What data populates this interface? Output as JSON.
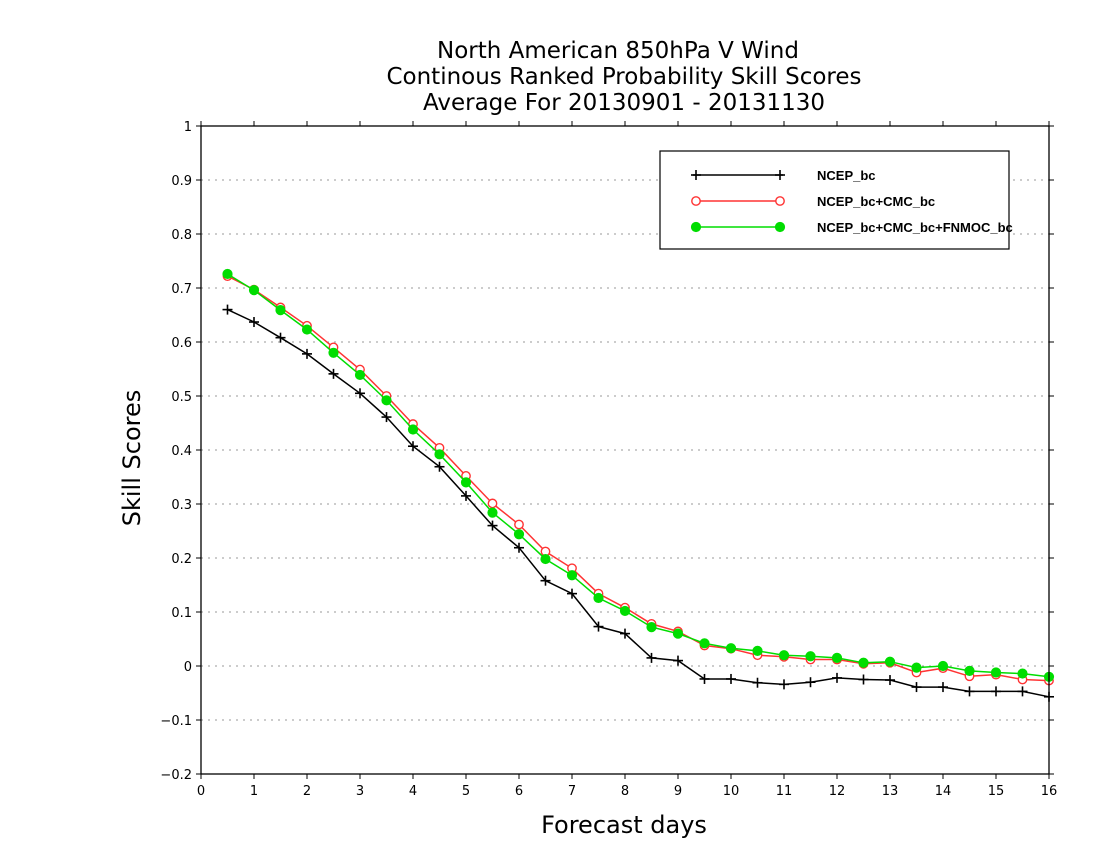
{
  "chart_data": {
    "type": "line",
    "title": [
      "North American 850hPa V Wind",
      "Continous Ranked Probability Skill Scores",
      "Average For 20130901 - 20131130"
    ],
    "xlabel": "Forecast days",
    "ylabel": "Skill Scores",
    "xlim": [
      0,
      16
    ],
    "ylim": [
      -0.2,
      1
    ],
    "xticks": [
      "0",
      "1",
      "2",
      "3",
      "4",
      "5",
      "6",
      "7",
      "8",
      "9",
      "10",
      "11",
      "12",
      "13",
      "14",
      "15",
      "16"
    ],
    "yticks": [
      "−0.2",
      "−0.1",
      "0",
      "0.1",
      "0.2",
      "0.3",
      "0.4",
      "0.5",
      "0.6",
      "0.7",
      "0.8",
      "0.9",
      "1"
    ],
    "grid": true,
    "legend_position": "top-right",
    "x": [
      0.5,
      1,
      1.5,
      2,
      2.5,
      3,
      3.5,
      4,
      4.5,
      5,
      5.5,
      6,
      6.5,
      7,
      7.5,
      8,
      8.5,
      9,
      9.5,
      10,
      10.5,
      11,
      11.5,
      12,
      12.5,
      13,
      13.5,
      14,
      14.5,
      15,
      15.5,
      16
    ],
    "series": [
      {
        "name": "NCEP_bc",
        "color": "#000000",
        "marker": "plus",
        "values": [
          0.66,
          0.637,
          0.608,
          0.578,
          0.541,
          0.505,
          0.461,
          0.407,
          0.369,
          0.315,
          0.26,
          0.219,
          0.158,
          0.134,
          0.073,
          0.06,
          0.015,
          0.01,
          -0.024,
          -0.024,
          -0.031,
          -0.034,
          -0.03,
          -0.022,
          -0.025,
          -0.026,
          -0.039,
          -0.039,
          -0.047,
          -0.047,
          -0.047,
          -0.057
        ]
      },
      {
        "name": "NCEP_bc+CMC_bc",
        "color": "#ff3333",
        "marker": "open-circle",
        "values": [
          0.722,
          0.697,
          0.664,
          0.63,
          0.59,
          0.549,
          0.5,
          0.448,
          0.404,
          0.352,
          0.301,
          0.262,
          0.212,
          0.181,
          0.134,
          0.108,
          0.078,
          0.064,
          0.038,
          0.032,
          0.02,
          0.017,
          0.012,
          0.012,
          0.004,
          0.006,
          -0.012,
          -0.004,
          -0.019,
          -0.016,
          -0.025,
          -0.027
        ]
      },
      {
        "name": "NCEP_bc+CMC_bc+FNMOC_bc",
        "color": "#00dd00",
        "marker": "filled-circle",
        "values": [
          0.726,
          0.696,
          0.659,
          0.623,
          0.58,
          0.539,
          0.492,
          0.438,
          0.392,
          0.34,
          0.284,
          0.244,
          0.198,
          0.168,
          0.126,
          0.102,
          0.072,
          0.06,
          0.042,
          0.033,
          0.028,
          0.02,
          0.018,
          0.015,
          0.006,
          0.008,
          -0.003,
          0.0,
          -0.009,
          -0.012,
          -0.014,
          -0.02
        ]
      }
    ]
  }
}
